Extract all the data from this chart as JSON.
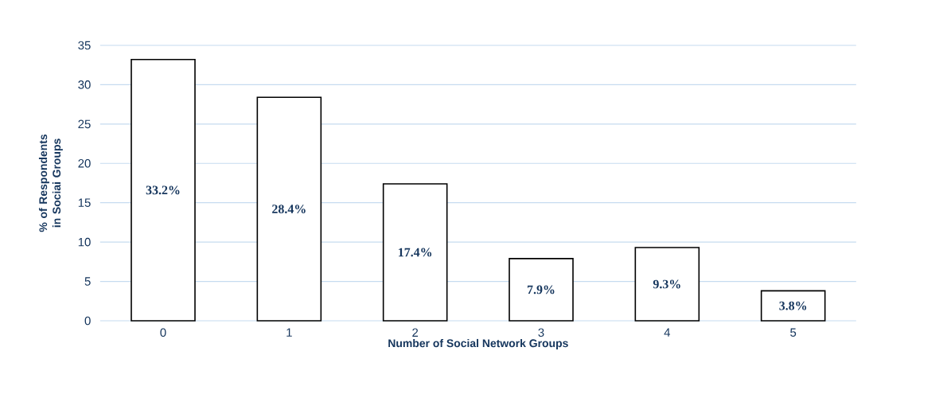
{
  "chart_data": {
    "type": "bar",
    "xlabel": "Number of Social Network Groups",
    "ylabel": "% of Respondents in Sociai Groups",
    "categories": [
      "0",
      "1",
      "2",
      "3",
      "4",
      "5"
    ],
    "values": [
      33.2,
      28.4,
      17.4,
      7.9,
      9.3,
      3.8
    ],
    "value_labels": [
      "33.2%",
      "28.4%",
      "17.4%",
      "7.9%",
      "9.3%",
      "3.8%"
    ],
    "color": "#ffffff",
    "ylim": [
      0,
      35
    ],
    "yticks": [
      0,
      5,
      10,
      15,
      20,
      25,
      30,
      35
    ],
    "grid": "y"
  }
}
